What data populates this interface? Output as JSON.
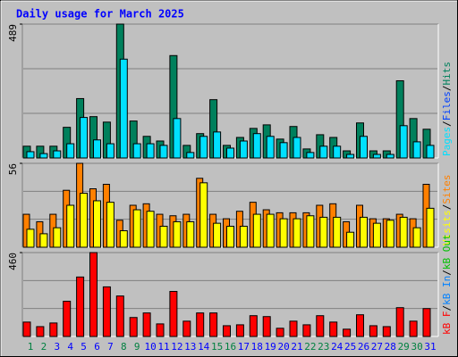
{
  "title": "Daily usage for March 2025",
  "legend_separator": "/",
  "chart_data": [
    {
      "type": "bar",
      "ylim": [
        0,
        489
      ],
      "yticks": [
        489
      ],
      "series": [
        {
          "name": "Pages",
          "color": "#00e0ff",
          "values": [
            23,
            16,
            26,
            52,
            148,
            66,
            52,
            361,
            52,
            52,
            46,
            144,
            20,
            79,
            95,
            36,
            62,
            89,
            79,
            56,
            75,
            20,
            43,
            43,
            13,
            79,
            13,
            13,
            118,
            59,
            46
          ]
        },
        {
          "name": "Files",
          "color": "#0040ff"
        },
        {
          "name": "Hits",
          "color": "#00805c",
          "values": [
            43,
            43,
            43,
            112,
            217,
            151,
            131,
            489,
            135,
            79,
            62,
            374,
            46,
            89,
            213,
            46,
            75,
            108,
            121,
            69,
            115,
            33,
            85,
            75,
            26,
            128,
            26,
            26,
            282,
            144,
            105
          ]
        }
      ]
    },
    {
      "type": "bar",
      "ylim": [
        0,
        56
      ],
      "yticks": [
        56
      ],
      "series": [
        {
          "name": "Visits",
          "color": "#ffff00",
          "values": [
            12,
            9,
            13,
            28,
            36,
            31,
            30,
            11,
            25,
            24,
            14,
            17,
            17,
            43,
            16,
            14,
            14,
            22,
            22,
            19,
            19,
            21,
            20,
            20,
            10,
            20,
            16,
            18,
            20,
            13,
            26
          ]
        },
        {
          "name": "Sites",
          "color": "#ff8000",
          "values": [
            22,
            17,
            22,
            38,
            56,
            39,
            42,
            18,
            28,
            29,
            22,
            21,
            22,
            46,
            22,
            19,
            24,
            30,
            25,
            23,
            23,
            23,
            28,
            29,
            17,
            28,
            19,
            19,
            22,
            19,
            42
          ]
        }
      ]
    },
    {
      "type": "bar",
      "ylim": [
        0,
        460
      ],
      "yticks": [
        460
      ],
      "categories": [
        "1",
        "2",
        "3",
        "4",
        "5",
        "6",
        "7",
        "8",
        "9",
        "10",
        "11",
        "12",
        "13",
        "14",
        "15",
        "16",
        "17",
        "18",
        "19",
        "20",
        "21",
        "22",
        "23",
        "24",
        "25",
        "26",
        "27",
        "28",
        "29",
        "30",
        "31"
      ],
      "category_colors": [
        "#008040",
        "#008040",
        "#0000ff",
        "#0000ff",
        "#0000ff",
        "#0000ff",
        "#0000ff",
        "#008040",
        "#008040",
        "#0000ff",
        "#0000ff",
        "#0000ff",
        "#0000ff",
        "#0000ff",
        "#008040",
        "#008040",
        "#0000ff",
        "#0000ff",
        "#0000ff",
        "#0000ff",
        "#0000ff",
        "#008040",
        "#008040",
        "#0000ff",
        "#0000ff",
        "#0000ff",
        "#0000ff",
        "#0000ff",
        "#008040",
        "#008040",
        "#0000ff"
      ],
      "series": [
        {
          "name": "kB F",
          "color": "#ff0000",
          "values": [
            79,
            54,
            74,
            193,
            326,
            460,
            272,
            222,
            104,
            129,
            69,
            247,
            84,
            129,
            129,
            59,
            64,
            114,
            109,
            45,
            84,
            64,
            114,
            79,
            40,
            119,
            59,
            54,
            158,
            84,
            153
          ]
        },
        {
          "name": "kB In",
          "color": "#0080ff"
        },
        {
          "name": "kB Out",
          "color": "#00c000"
        }
      ]
    }
  ]
}
